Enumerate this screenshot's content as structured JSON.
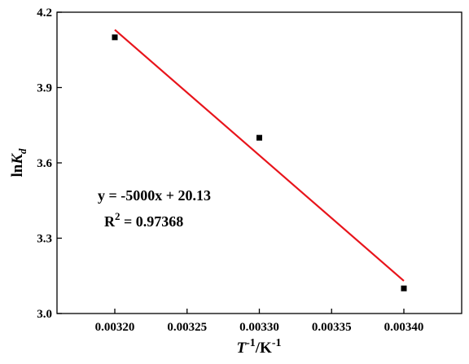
{
  "chart_data": {
    "type": "scatter",
    "x_values": [
      0.0032,
      0.0033,
      0.0034
    ],
    "y_values": [
      4.1,
      3.7,
      3.1
    ],
    "xlim": [
      0.00316,
      0.00344
    ],
    "ylim": [
      3.0,
      4.2
    ],
    "x_ticks": [
      "0.00320",
      "0.00325",
      "0.00330",
      "0.00335",
      "0.00340"
    ],
    "x_tick_values": [
      0.0032,
      0.00325,
      0.0033,
      0.00335,
      0.0034
    ],
    "y_ticks": [
      "3.0",
      "3.3",
      "3.6",
      "3.9",
      "4.2"
    ],
    "y_tick_values": [
      3.0,
      3.3,
      3.6,
      3.9,
      4.2
    ],
    "xlabel": {
      "main": "T",
      "sup": "-1",
      "unit": "/K",
      "unit_sup": "-1"
    },
    "ylabel": {
      "prefix": "ln",
      "main": "K",
      "sub": "d"
    },
    "fit": {
      "slope": -5000,
      "intercept": 20.13,
      "x_range": [
        0.0032,
        0.0034
      ],
      "equation": "y = -5000x + 20.13",
      "r2_label": "R",
      "r2_sup": "2",
      "r2_value": " = 0.97368"
    },
    "marker_color": "#000000",
    "fit_color": "#e8141b",
    "grid": false
  }
}
